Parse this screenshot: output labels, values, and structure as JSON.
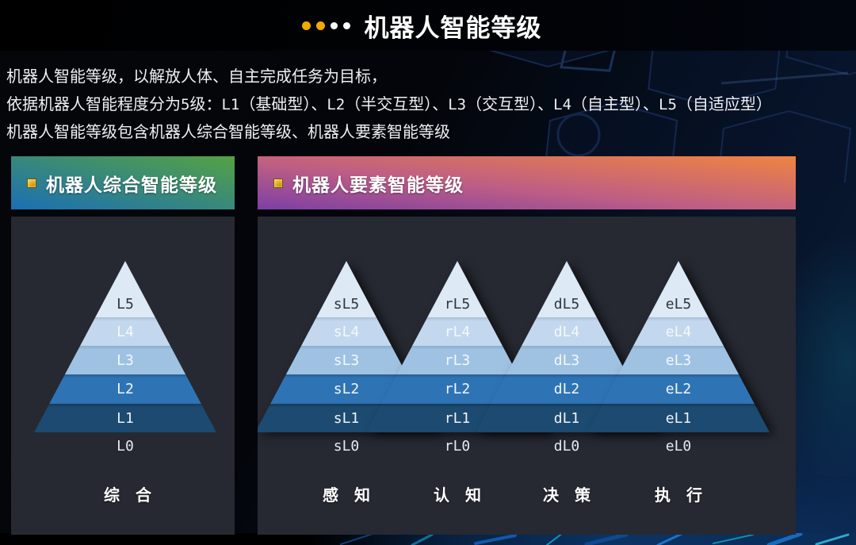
{
  "header": {
    "title": "机器人智能等级",
    "dots": [
      "gold",
      "gold",
      "white",
      "white"
    ]
  },
  "description": {
    "line1": "机器人智能等级，以解放人体、自主完成任务为目标，",
    "line2_segments": [
      {
        "t": "依据机器人智能程度分为"
      },
      {
        "t": "5",
        "m": true
      },
      {
        "t": "级："
      },
      {
        "t": "L1",
        "m": true
      },
      {
        "t": "（基础型）、"
      },
      {
        "t": "L2",
        "m": true
      },
      {
        "t": "（半交互型）、"
      },
      {
        "t": "L3",
        "m": true
      },
      {
        "t": "（交互型）、"
      },
      {
        "t": "L4",
        "m": true
      },
      {
        "t": "（自主型）、"
      },
      {
        "t": "L5",
        "m": true
      },
      {
        "t": "（自适应型）"
      }
    ],
    "line3": "机器人智能等级包含机器人综合智能等级、机器人要素智能等级"
  },
  "left_panel": {
    "title": "机器人综合智能等级",
    "pyramids": [
      {
        "levels": [
          "L5",
          "L4",
          "L3",
          "L2",
          "L1"
        ],
        "base": "L0"
      }
    ],
    "categories": [
      "综　合"
    ]
  },
  "right_panel": {
    "title": "机器人要素智能等级",
    "pyramids": [
      {
        "levels": [
          "sL5",
          "sL4",
          "sL3",
          "sL2",
          "sL1"
        ],
        "base": "sL0"
      },
      {
        "levels": [
          "rL5",
          "rL4",
          "rL3",
          "rL2",
          "rL1"
        ],
        "base": "rL0"
      },
      {
        "levels": [
          "dL5",
          "dL4",
          "dL3",
          "dL2",
          "dL1"
        ],
        "base": "dL0"
      },
      {
        "levels": [
          "eL5",
          "eL4",
          "eL3",
          "eL2",
          "eL1"
        ],
        "base": "eL0"
      }
    ],
    "categories": [
      "感　知",
      "认　知",
      "决　策",
      "执　行"
    ]
  },
  "colors": {
    "accent_gold": "#f2a900",
    "band_l5": "#dde9f5",
    "band_l4": "#c3d8ee",
    "band_l3": "#9fc2e3",
    "band_l2": "#2e74b5",
    "band_l1": "#1d4a70",
    "left_header_from": "#1b6fb4",
    "left_header_to": "#55a243",
    "right_header_from": "#7d3fa5",
    "right_header_to": "#ef8440",
    "panel_body": "#262932"
  }
}
